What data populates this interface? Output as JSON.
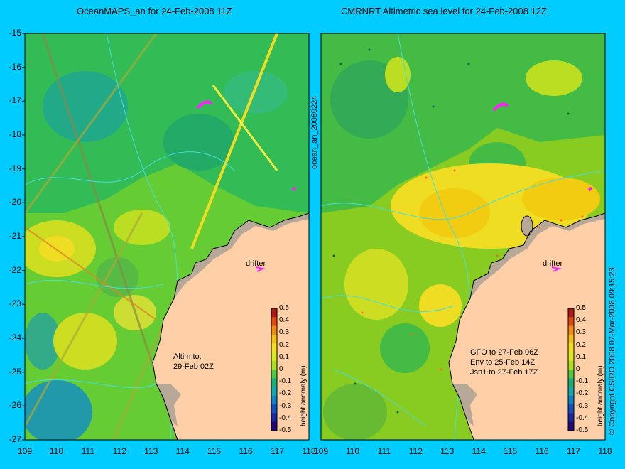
{
  "colors": {
    "background": "#00ccff",
    "land": "#ffd0a8",
    "coast_shelf": "#b8a898",
    "drifter": "#ff22ff"
  },
  "left_panel": {
    "title": "OceanMAPS_an for 24-Feb-2008 11Z",
    "note_line1": "Altim to:",
    "note_line2": "29-Feb 02Z",
    "drifter_label": "drifter",
    "colorbar_label": "height anomaly (m)"
  },
  "right_panel": {
    "title": "CMRNRT Altimetric sea level  for 24-Feb-2008 12Z",
    "note_line1": "GFO to 27-Feb 06Z",
    "note_line2": "Env to 25-Feb 14Z",
    "note_line3": "Jsn1 to 27-Feb 17Z",
    "drifter_label": "drifter",
    "colorbar_label": "height anomaly (m)"
  },
  "side_labels": {
    "middle": "ocean_an_20080224",
    "right": "© Copyright CSIRO 2008  07-Mar-2008 09:15:23"
  },
  "axes": {
    "y_ticks": [
      "-15",
      "-16",
      "-17",
      "-18",
      "-19",
      "-20",
      "-21",
      "-22",
      "-23",
      "-24",
      "-25",
      "-26",
      "-27"
    ],
    "x_ticks": [
      "109",
      "110",
      "111",
      "112",
      "113",
      "114",
      "115",
      "116",
      "117",
      "118"
    ]
  },
  "colorbar": {
    "ticks": [
      "0.5",
      "0.4",
      "0.3",
      "0.2",
      "0.1",
      "0",
      "-0.1",
      "-0.2",
      "-0.3",
      "-0.4",
      "-0.5"
    ],
    "colors": [
      "#b01818",
      "#e04a10",
      "#f08a10",
      "#f2c010",
      "#f2e020",
      "#d8ea20",
      "#a8e020",
      "#50c840",
      "#18b078",
      "#10a8b0",
      "#1080c8",
      "#1050c0",
      "#1828a0",
      "#200878"
    ]
  }
}
